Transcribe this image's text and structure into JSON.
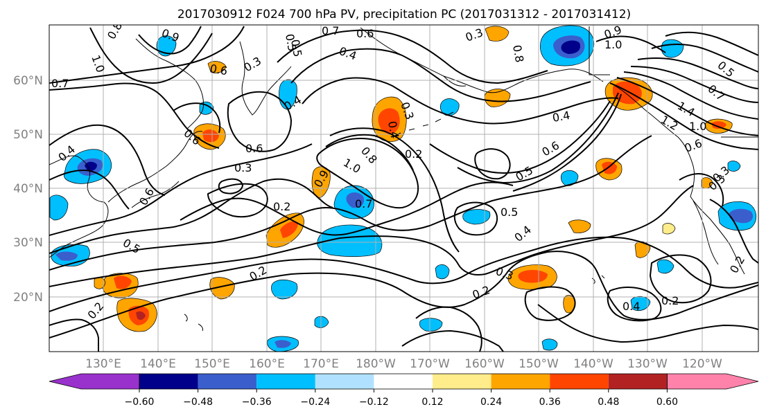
{
  "title": "2017030912 F024 700 hPa PV, precipitation PC (2017031312 - 2017031412)",
  "lat_labels": [
    "60°N",
    "50°N",
    "40°N",
    "30°N",
    "20°N"
  ],
  "lon_labels": [
    "130°E",
    "140°E",
    "150°E",
    "160°E",
    "170°E",
    "180°W",
    "170°W",
    "160°W",
    "150°W",
    "140°W",
    "130°W",
    "120°W"
  ],
  "colorbar": {
    "ticks": [
      "−0.60",
      "−0.48",
      "−0.36",
      "−0.24",
      "−0.12",
      "0.12",
      "0.24",
      "0.36",
      "0.48",
      "0.60"
    ],
    "colors": [
      "#9932cc",
      "#00008b",
      "#3a5fcd",
      "#00bfff",
      "#b0e2ff",
      "#ffffff",
      "#ffec8b",
      "#ffa500",
      "#ff4500",
      "#b22222",
      "#ff82ab"
    ]
  },
  "contour_labels": [
    "0.8",
    "0.9",
    "0.7",
    "0.6",
    "0.5",
    "0.3",
    "1.0",
    "0.3",
    "0.4",
    "0.8",
    "0.7",
    "0.6",
    "1.0",
    "0.9",
    "0.4",
    "1.4",
    "1.2",
    "1.0",
    "0.5",
    "0.6",
    "0.7",
    "0.3",
    "0.5",
    "0.6",
    "0.4",
    "0.6",
    "0.6",
    "0.3",
    "0.2",
    "0.2",
    "0.4",
    "0.7",
    "0.5",
    "0.3",
    "0.2",
    "1.0",
    "0.8",
    "0.5",
    "0.4",
    "0.2",
    "0.3",
    "0.2",
    "0.4",
    "0.2",
    "0.3",
    "0.2",
    "0.9",
    "0.4",
    "0.5",
    "0.6"
  ]
}
